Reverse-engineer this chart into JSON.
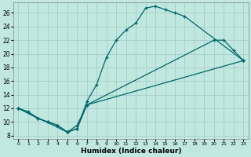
{
  "xlabel": "Humidex (Indice chaleur)",
  "bg_color": "#c0e8e0",
  "grid_color": "#a8ccc8",
  "line_color": "#006868",
  "xlim": [
    -0.5,
    23.5
  ],
  "ylim": [
    7.5,
    27.5
  ],
  "xticks": [
    0,
    1,
    2,
    3,
    4,
    5,
    6,
    7,
    8,
    9,
    10,
    11,
    12,
    13,
    14,
    15,
    16,
    17,
    18,
    19,
    20,
    21,
    22,
    23
  ],
  "yticks": [
    8,
    10,
    12,
    14,
    16,
    18,
    20,
    22,
    24,
    26
  ],
  "line1_x": [
    0,
    1,
    2,
    3,
    4,
    5,
    6,
    7,
    8,
    9,
    10,
    11,
    12,
    13,
    14,
    15,
    16,
    17,
    23
  ],
  "line1_y": [
    12,
    11.5,
    10.5,
    10,
    9.5,
    8.5,
    9,
    13,
    15.5,
    19.5,
    22,
    23.5,
    24.5,
    26.7,
    27,
    26.5,
    26,
    25.5,
    19
  ],
  "line2_x": [
    0,
    2,
    3,
    4,
    5,
    6,
    7,
    20,
    21,
    22,
    23
  ],
  "line2_y": [
    12,
    10.5,
    10,
    9.5,
    8.5,
    9.5,
    12.5,
    22,
    22,
    20.5,
    19
  ],
  "line3_x": [
    0,
    5,
    6,
    7,
    23
  ],
  "line3_y": [
    12,
    8.5,
    9,
    12.5,
    19
  ]
}
